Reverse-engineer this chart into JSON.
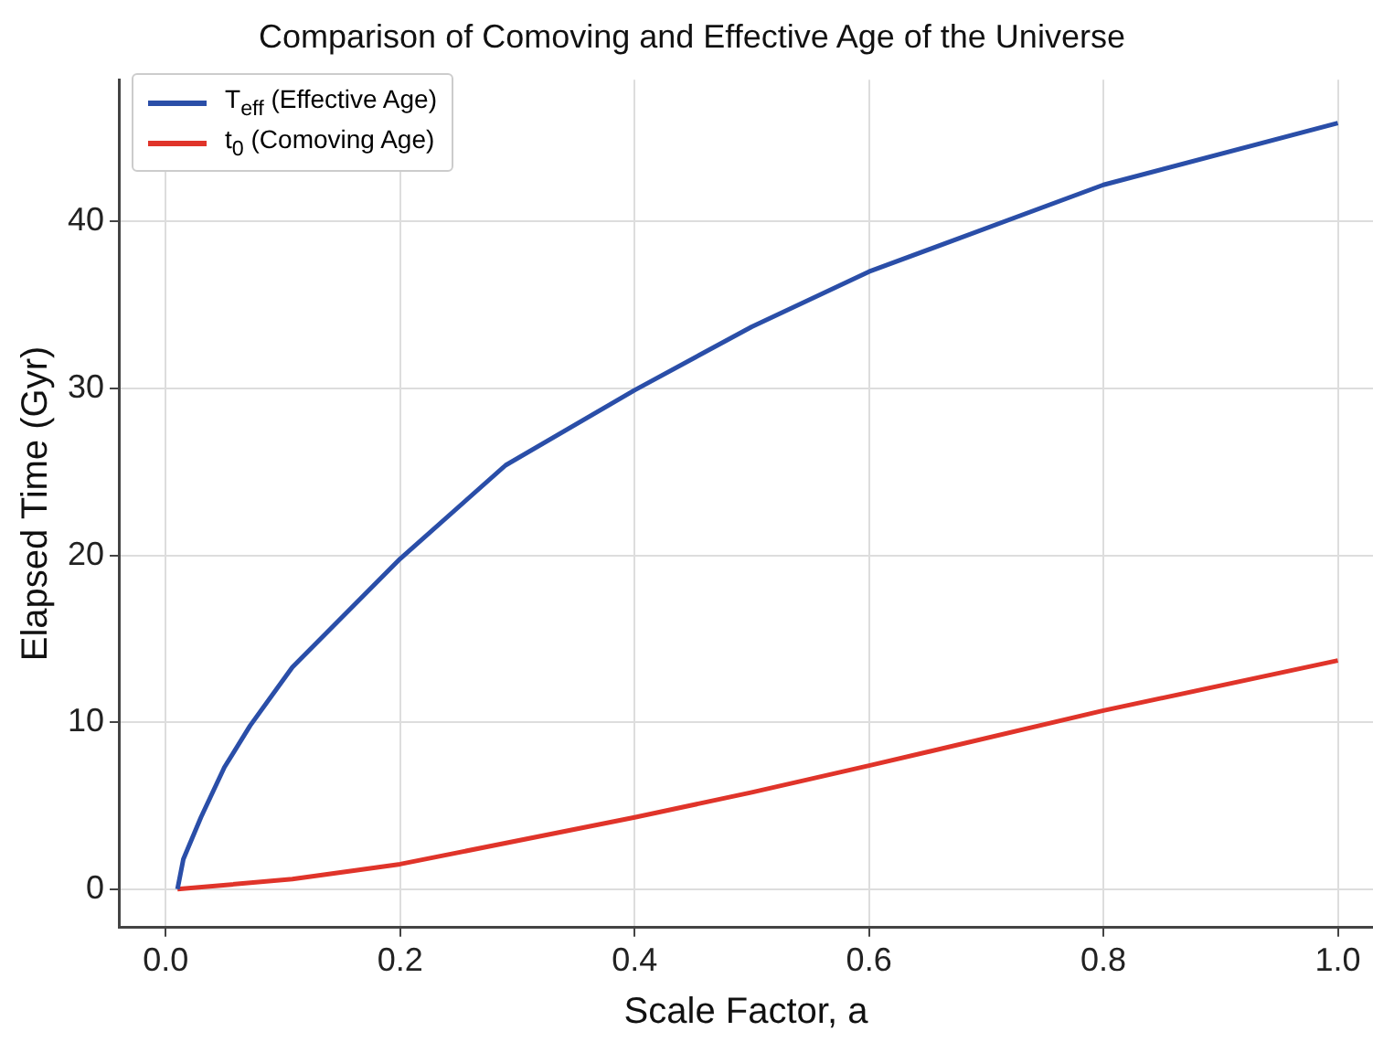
{
  "chart_data": {
    "type": "line",
    "title": "Comparison of Comoving and Effective Age of the Universe",
    "xlabel": "Scale Factor, a",
    "ylabel": "Elapsed Time (Gyr)",
    "xlim": [
      -0.04,
      1.03
    ],
    "xticks": [
      {
        "value": 0,
        "label": "0.0"
      },
      0.2,
      0.4,
      0.6,
      0.8,
      {
        "value": 1,
        "label": "1.0"
      }
    ],
    "ylim": [
      -2.3,
      48.5
    ],
    "yticks": [
      0,
      10,
      20,
      30,
      40
    ],
    "grid": true,
    "legend": "top left",
    "marker": "none",
    "line_style": "solid",
    "series": [
      {
        "name": "T$_{eff}$ (Effective Age)",
        "color": "#2a4ea8",
        "x": [
          0.01,
          0.015,
          0.03,
          0.05,
          0.072,
          0.108,
          0.2,
          0.29,
          0.4,
          0.5,
          0.6,
          0.8,
          1.0
        ],
        "values": [
          0,
          1.8,
          4.3,
          7.3,
          9.8,
          13.3,
          19.8,
          25.4,
          29.9,
          33.7,
          37.0,
          42.2,
          45.9
        ]
      },
      {
        "name": "t$_{0}$ (Comoving Age)",
        "color": "#e0342a",
        "x": [
          0.01,
          0.108,
          0.2,
          0.4,
          0.5,
          0.6,
          0.8,
          1.0
        ],
        "values": [
          0,
          0.6,
          1.5,
          4.3,
          5.8,
          7.4,
          10.7,
          13.7
        ]
      }
    ]
  }
}
